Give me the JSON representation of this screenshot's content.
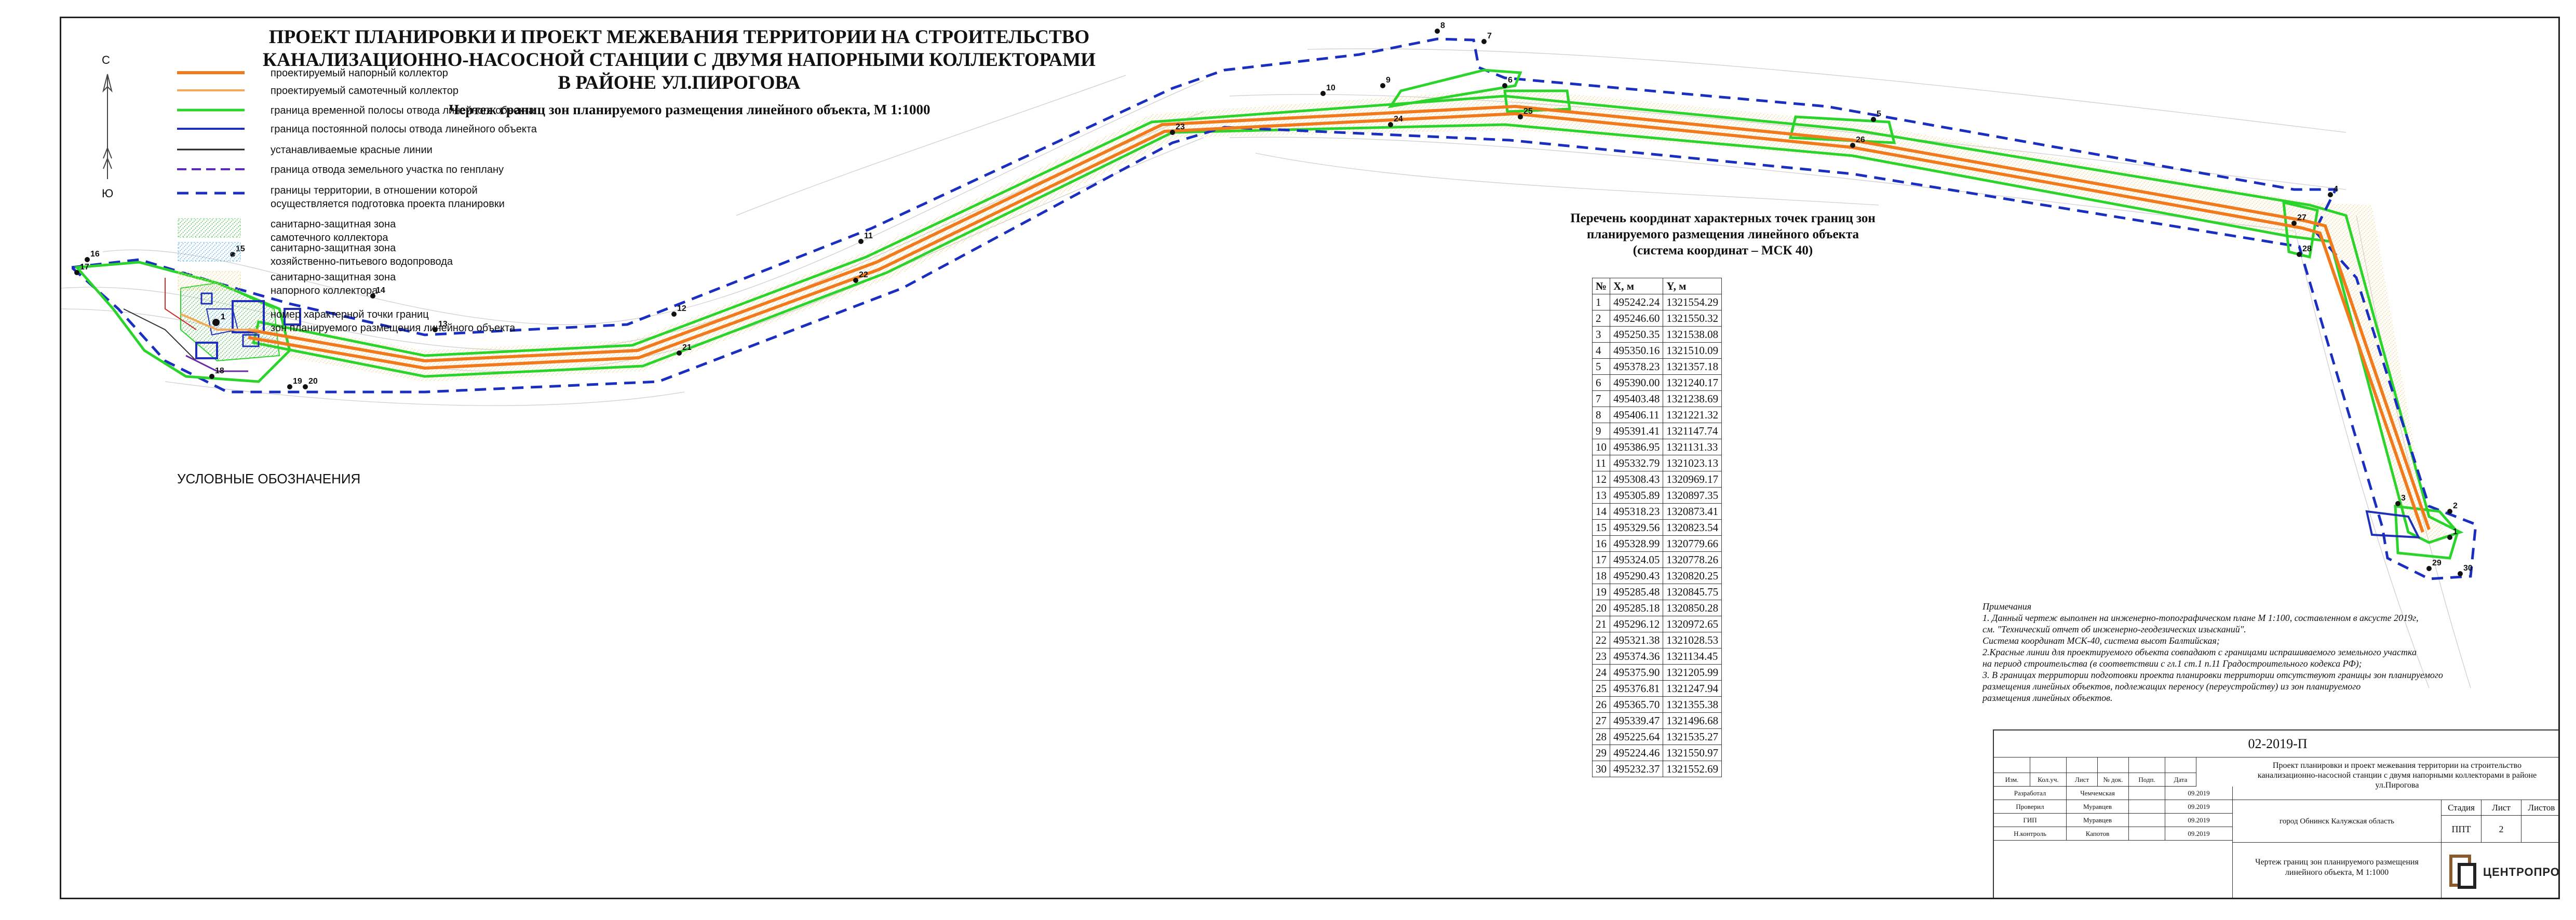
{
  "title": {
    "line1": "ПРОЕКТ ПЛАНИРОВКИ И ПРОЕКТ МЕЖЕВАНИЯ ТЕРРИТОРИИ НА СТРОИТЕЛЬСТВО",
    "line2": "КАНАЛИЗАЦИОННО-НАСОСНОЙ СТАНЦИИ С ДВУМЯ НАПОРНЫМИ КОЛЛЕКТОРАМИ",
    "line3": "В РАЙОНЕ УЛ.ПИРОГОВА",
    "subtitle": "Чертеж границ зон планируемого размещения линейного объекта, М 1:1000"
  },
  "north_arrow": {
    "north": "С",
    "south": "Ю"
  },
  "colors": {
    "pressure": "#f07a1c",
    "gravity": "#f4a85a",
    "temp_strip": "#2bd42b",
    "perm_strip": "#1f2fb8",
    "red_line": "#222222",
    "plot_boundary": "#5a2ab8",
    "territory": "#1a2fc0"
  },
  "legend": {
    "heading": "УСЛОВНЫЕ ОБОЗНАЧЕНИЯ",
    "items": [
      "проектируемый напорный коллектор",
      "проектируемый самотечный коллектор",
      "граница временной полосы отвода линейного объекта",
      "граница постоянной полосы отвода линейного объекта",
      "устанавливаемые красные линии",
      "граница отвода земельного участка по генплану",
      "границы территории, в отношении которой\nосуществляется подготовка проекта планировки",
      "санитарно-защитная зона\nсамотечного коллектора",
      "санитарно-защитная зона\nхозяйственно-питьевого водопровода",
      "санитарно-защитная зона\nнапорного коллектора",
      "номер характерной точки границ\nзон планируемого размещения линейного объекта"
    ],
    "point_symbol": "1"
  },
  "coords_title": {
    "line1": "Перечень координат характерных точек границ зон",
    "line2": "планируемого размещения линейного объекта",
    "line3": "(система координат – МСК 40)"
  },
  "coords_header": {
    "n": "№",
    "x": "X, м",
    "y": "Y, м"
  },
  "coords": [
    [
      "1",
      "495242.24",
      "1321554.29"
    ],
    [
      "2",
      "495246.60",
      "1321550.32"
    ],
    [
      "3",
      "495250.35",
      "1321538.08"
    ],
    [
      "4",
      "495350.16",
      "1321510.09"
    ],
    [
      "5",
      "495378.23",
      "1321357.18"
    ],
    [
      "6",
      "495390.00",
      "1321240.17"
    ],
    [
      "7",
      "495403.48",
      "1321238.69"
    ],
    [
      "8",
      "495406.11",
      "1321221.32"
    ],
    [
      "9",
      "495391.41",
      "1321147.74"
    ],
    [
      "10",
      "495386.95",
      "1321131.33"
    ],
    [
      "11",
      "495332.79",
      "1321023.13"
    ],
    [
      "12",
      "495308.43",
      "1320969.17"
    ],
    [
      "13",
      "495305.89",
      "1320897.35"
    ],
    [
      "14",
      "495318.23",
      "1320873.41"
    ],
    [
      "15",
      "495329.56",
      "1320823.54"
    ],
    [
      "16",
      "495328.99",
      "1320779.66"
    ],
    [
      "17",
      "495324.05",
      "1320778.26"
    ],
    [
      "18",
      "495290.43",
      "1320820.25"
    ],
    [
      "19",
      "495285.48",
      "1320845.75"
    ],
    [
      "20",
      "495285.18",
      "1320850.28"
    ],
    [
      "21",
      "495296.12",
      "1320972.65"
    ],
    [
      "22",
      "495321.38",
      "1321028.53"
    ],
    [
      "23",
      "495374.36",
      "1321134.45"
    ],
    [
      "24",
      "495375.90",
      "1321205.99"
    ],
    [
      "25",
      "495376.81",
      "1321247.94"
    ],
    [
      "26",
      "495365.70",
      "1321355.38"
    ],
    [
      "27",
      "495339.47",
      "1321496.68"
    ],
    [
      "28",
      "495225.64",
      "1321535.27"
    ],
    [
      "29",
      "495224.46",
      "1321550.97"
    ],
    [
      "30",
      "495232.37",
      "1321552.69"
    ]
  ],
  "notes": [
    "Примечания",
    "1. Данный чертеж выполнен на инженерно-топографическом плане М 1:100, составленном в аксусте 2019г,",
    "см. \"Технический отчет об инженерно-геодезических изысканий\".",
    "Система координат  МСК-40, система высот  Балтийская;",
    "2.Красные линии для проектируемого объекта совпадают с границами испрашиваемого земельного участка",
    "на период строительства (в соответствии с гл.1 ст.1 п.11 Градостроительного кодекса РФ);",
    "3. В границах территории подготовки проекта планировки территории отсутствуют границы зон планируемого",
    "размещения линейных объектов, подлежащих переносу (переустройству) из зон планируемого",
    "размещения линейных объектов."
  ],
  "stamp": {
    "code": "02-2019-П",
    "project": "Проект планировки и проект межевания территории на строительство канализационно-насосной станции с двумя напорными коллекторами в районе ул.Пирогова",
    "city": "город Обнинск Калужская область",
    "cols": [
      "Изм.",
      "Кол.уч.",
      "Лист",
      "№ док.",
      "Подп.",
      "Дата"
    ],
    "rows": [
      [
        "Разработал",
        "Чемчемская",
        "09.2019"
      ],
      [
        "Проверил",
        "Муравцев",
        "09.2019"
      ],
      [
        "ГИП",
        "Муравцев",
        "09.2019"
      ],
      [
        "Н.контроль",
        "Капотов",
        "09.2019"
      ]
    ],
    "stage_label": "Стадия",
    "sheet_label": "Лист",
    "sheets_label": "Листов",
    "stage": "ППТ",
    "sheet": "2",
    "sheets": "",
    "drawing": "Чертеж границ зон планируемого размещения линейного объекта, М 1:1000",
    "logo_text": "ЦЕНТРОПРОЕКТ"
  },
  "point_labels": [
    {
      "n": "1"
    },
    {
      "n": "2"
    },
    {
      "n": "3"
    },
    {
      "n": "4"
    },
    {
      "n": "5"
    },
    {
      "n": "6"
    },
    {
      "n": "7"
    },
    {
      "n": "8"
    },
    {
      "n": "9"
    },
    {
      "n": "10"
    },
    {
      "n": "11"
    },
    {
      "n": "12"
    },
    {
      "n": "13"
    },
    {
      "n": "14"
    },
    {
      "n": "15"
    },
    {
      "n": "16"
    },
    {
      "n": "17"
    },
    {
      "n": "18"
    },
    {
      "n": "19"
    },
    {
      "n": "20"
    },
    {
      "n": "21"
    },
    {
      "n": "22"
    },
    {
      "n": "23"
    },
    {
      "n": "24"
    },
    {
      "n": "25"
    },
    {
      "n": "26"
    },
    {
      "n": "27"
    },
    {
      "n": "28"
    },
    {
      "n": "29"
    },
    {
      "n": "30"
    }
  ]
}
